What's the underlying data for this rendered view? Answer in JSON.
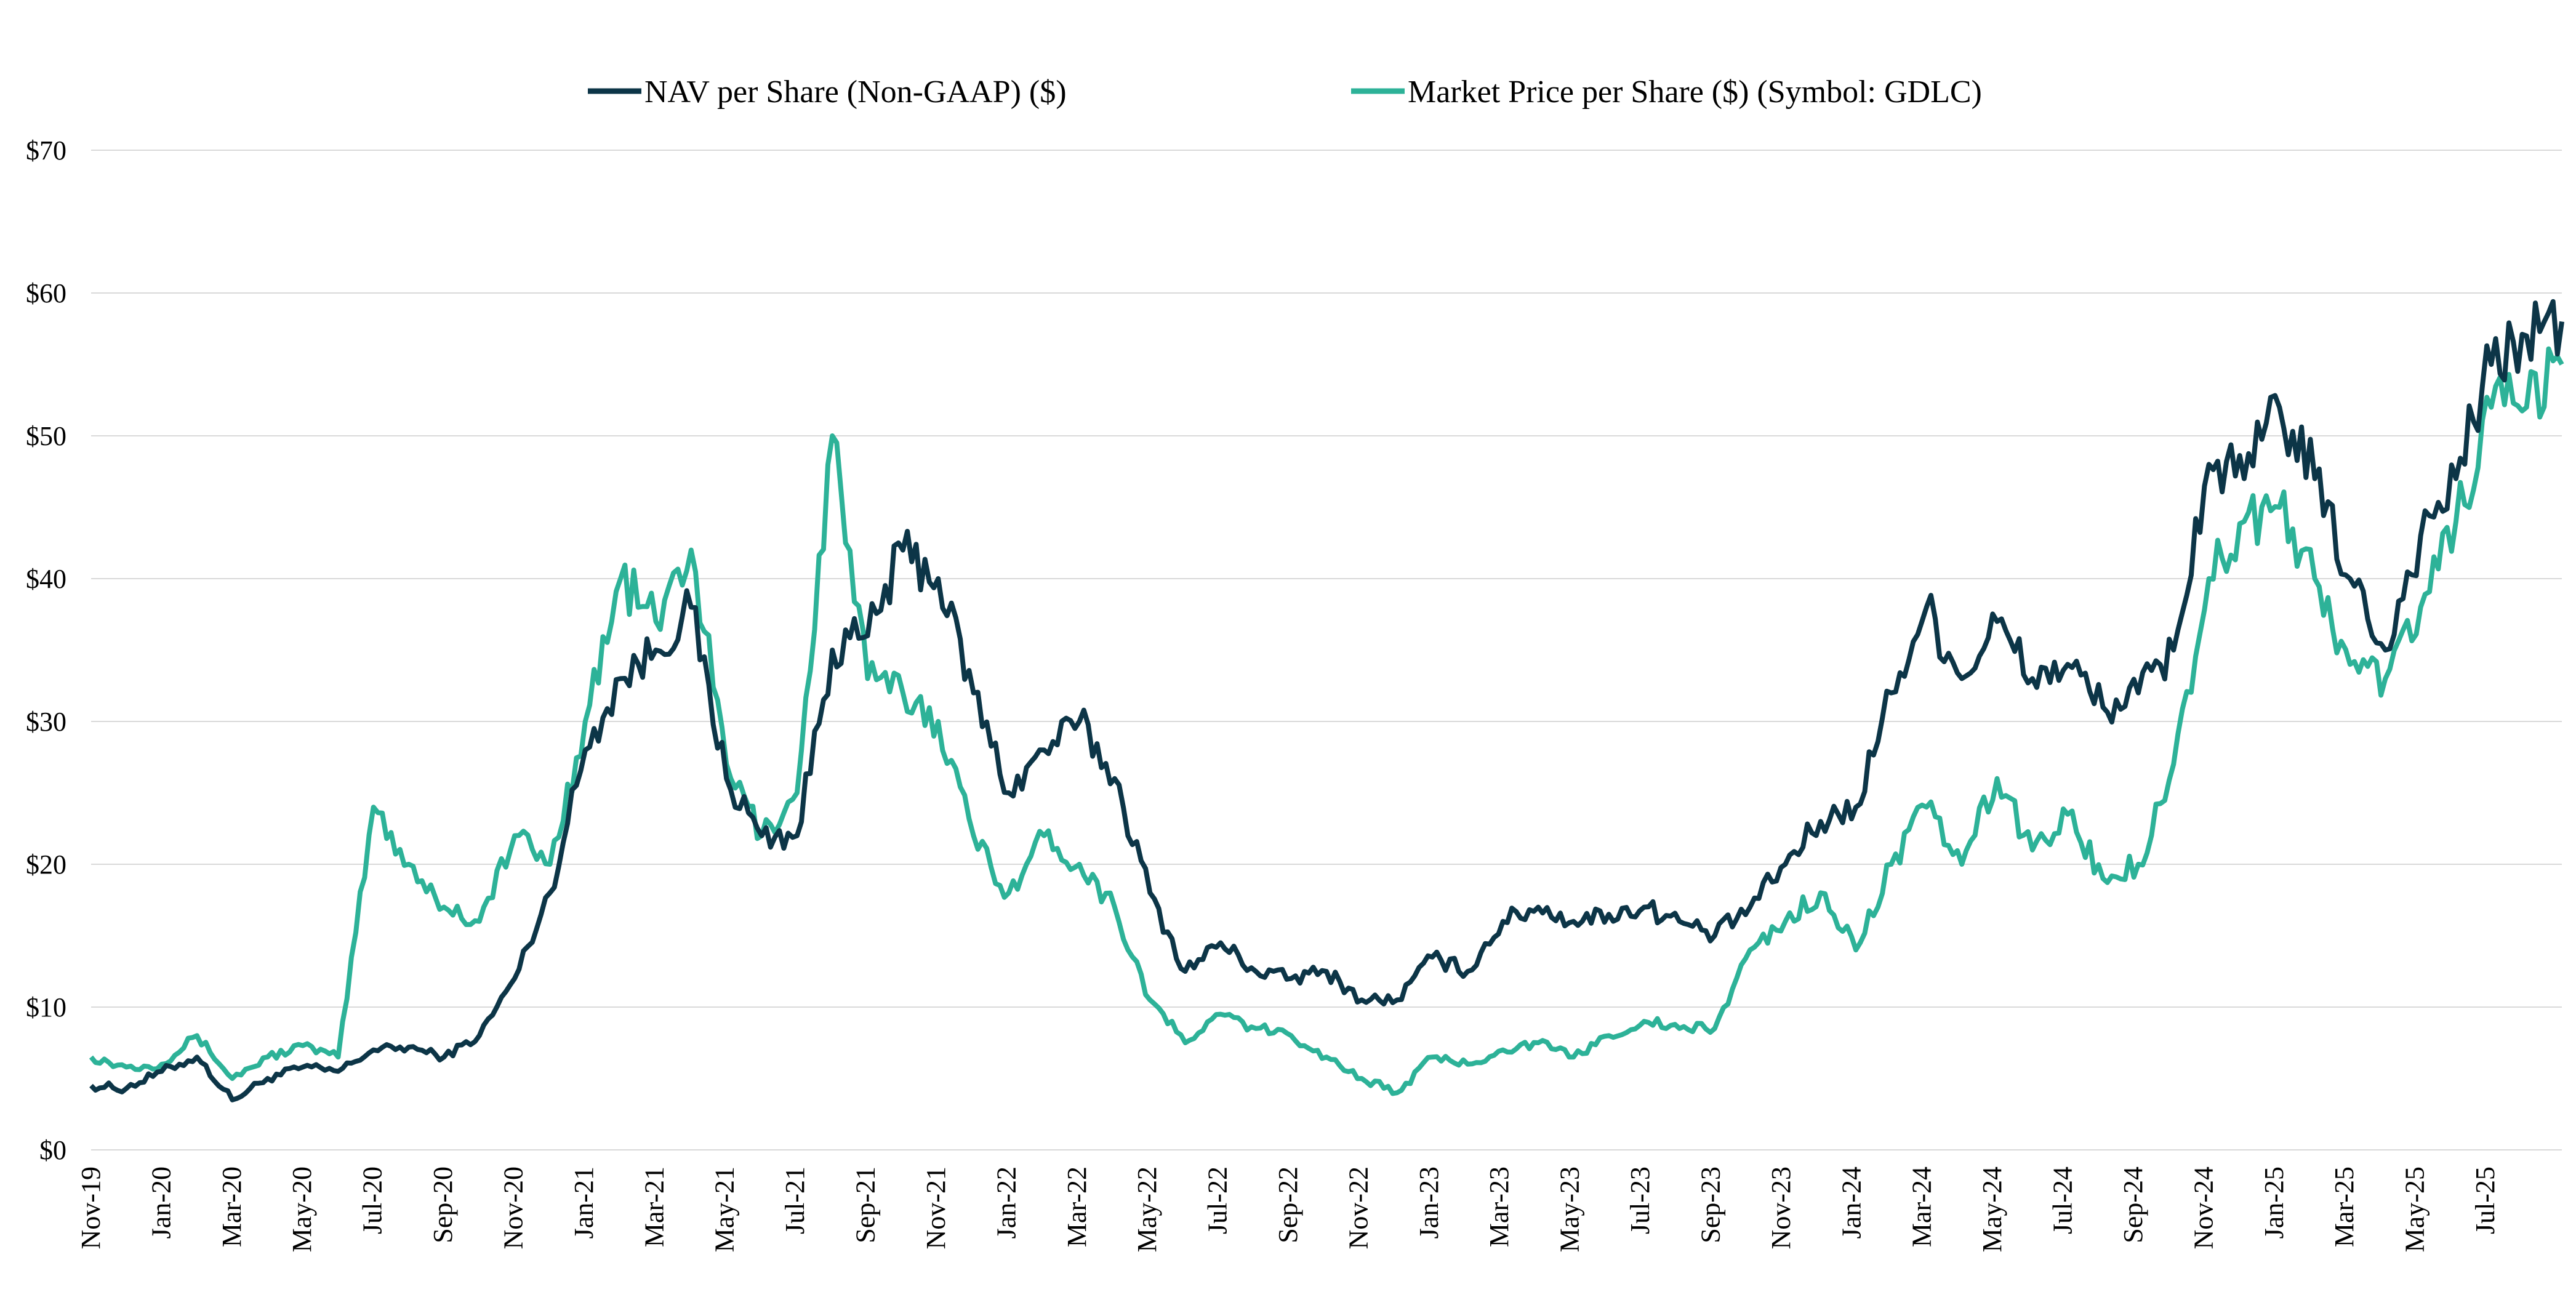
{
  "chart_data": {
    "type": "line",
    "title": "",
    "xlabel": "",
    "ylabel": "",
    "ylim": [
      0,
      70
    ],
    "yticks": [
      0,
      10,
      20,
      30,
      40,
      50,
      60,
      70
    ],
    "ytick_labels": [
      "$0",
      "$10",
      "$20",
      "$30",
      "$40",
      "$50",
      "$60",
      "$70"
    ],
    "xtick_labels": [
      "Nov-19",
      "Jan-20",
      "Mar-20",
      "May-20",
      "Jul-20",
      "Sep-20",
      "Nov-20",
      "Jan-21",
      "Mar-21",
      "May-21",
      "Jul-21",
      "Sep-21",
      "Nov-21",
      "Jan-22",
      "Mar-22",
      "May-22",
      "Jul-22",
      "Sep-22",
      "Nov-22",
      "Jan-23",
      "Mar-23",
      "May-23",
      "Jul-23",
      "Sep-23",
      "Nov-23",
      "Jan-24",
      "Mar-24",
      "May-24",
      "Jul-24",
      "Sep-24",
      "Nov-24",
      "Jan-25",
      "Mar-25",
      "May-25",
      "Jul-25"
    ],
    "x_range": [
      "Nov-19",
      "Sep-25"
    ],
    "grid": "horizontal",
    "legend_position": "top-center",
    "series": [
      {
        "name": "NAV per Share (Non-GAAP) ($)",
        "color": "#0c3547",
        "x": [
          "Nov-19",
          "Dec-19",
          "Jan-20",
          "Feb-20",
          "Mar-20",
          "Apr-20",
          "May-20",
          "Jun-20",
          "Jul-20",
          "Aug-20",
          "Sep-20",
          "Oct-20",
          "Nov-20",
          "Dec-20",
          "Jan-21",
          "Feb-21",
          "Mar-21",
          "Apr-21",
          "May-21",
          "Jun-21",
          "Jul-21",
          "Aug-21",
          "Sep-21",
          "Oct-21",
          "Nov-21",
          "Dec-21",
          "Jan-22",
          "Feb-22",
          "Mar-22",
          "Apr-22",
          "May-22",
          "Jun-22",
          "Jul-22",
          "Aug-22",
          "Sep-22",
          "Oct-22",
          "Nov-22",
          "Dec-22",
          "Jan-23",
          "Feb-23",
          "Mar-23",
          "Apr-23",
          "May-23",
          "Jun-23",
          "Jul-23",
          "Aug-23",
          "Sep-23",
          "Oct-23",
          "Nov-23",
          "Dec-23",
          "Jan-24",
          "Feb-24",
          "Mar-24",
          "Apr-24",
          "May-24",
          "Jun-24",
          "Jul-24",
          "Aug-24",
          "Sep-24",
          "Oct-24",
          "Nov-24",
          "Dec-24",
          "Jan-25",
          "Feb-25",
          "Mar-25",
          "Apr-25",
          "May-25",
          "Jun-25",
          "Jul-25",
          "Aug-25",
          "Sep-25"
        ],
        "values": [
          4.5,
          4.3,
          5.5,
          6.5,
          3.5,
          5.0,
          5.8,
          5.5,
          7.0,
          7.2,
          6.5,
          8.0,
          12.0,
          18.0,
          28.0,
          33.0,
          35.0,
          38.0,
          26.0,
          22.0,
          22.0,
          35.0,
          36.0,
          42.0,
          40.0,
          32.0,
          25.0,
          28.0,
          30.0,
          26.0,
          18.0,
          12.5,
          14.5,
          12.5,
          12.0,
          12.5,
          10.5,
          10.5,
          13.5,
          12.5,
          16.0,
          17.0,
          16.0,
          16.5,
          17.0,
          16.0,
          15.0,
          17.0,
          20.0,
          23.0,
          24.0,
          32.0,
          38.0,
          33.0,
          37.0,
          33.0,
          34.0,
          31.0,
          32.0,
          35.0,
          48.0,
          47.0,
          52.0,
          47.0,
          40.0,
          35.0,
          43.0,
          47.0,
          55.0,
          57.0,
          58.0
        ]
      },
      {
        "name": "Market Price per Share ($) (Symbol: GDLC)",
        "color": "#2db298",
        "x": [
          "Nov-19",
          "Dec-19",
          "Jan-20",
          "Feb-20",
          "Mar-20",
          "Apr-20",
          "May-20",
          "Jun-20",
          "Jul-20",
          "Aug-20",
          "Sep-20",
          "Oct-20",
          "Nov-20",
          "Dec-20",
          "Jan-21",
          "Feb-21",
          "Mar-21",
          "Apr-21",
          "May-21",
          "Jun-21",
          "Jul-21",
          "Aug-21",
          "Sep-21",
          "Oct-21",
          "Nov-21",
          "Dec-21",
          "Jan-22",
          "Feb-22",
          "Mar-22",
          "Apr-22",
          "May-22",
          "Jun-22",
          "Jul-22",
          "Aug-22",
          "Sep-22",
          "Oct-22",
          "Nov-22",
          "Dec-22",
          "Jan-23",
          "Feb-23",
          "Mar-23",
          "Apr-23",
          "May-23",
          "Jun-23",
          "Jul-23",
          "Aug-23",
          "Sep-23",
          "Oct-23",
          "Nov-23",
          "Dec-23",
          "Jan-24",
          "Feb-24",
          "Mar-24",
          "Apr-24",
          "May-24",
          "Jun-24",
          "Jul-24",
          "Aug-24",
          "Sep-24",
          "Oct-24",
          "Nov-24",
          "Dec-24",
          "Jan-25",
          "Feb-25",
          "Mar-25",
          "Apr-25",
          "May-25",
          "Jun-25",
          "Jul-25",
          "Aug-25",
          "Sep-25"
        ],
        "values": [
          6.5,
          5.8,
          6.0,
          8.0,
          5.0,
          6.5,
          7.3,
          6.5,
          24.0,
          20.0,
          17.0,
          16.0,
          22.0,
          20.0,
          30.0,
          40.0,
          37.0,
          42.0,
          27.0,
          22.0,
          25.0,
          50.0,
          33.0,
          32.0,
          30.0,
          22.0,
          18.0,
          22.0,
          20.0,
          17.0,
          10.5,
          7.5,
          9.5,
          8.5,
          8.0,
          6.5,
          5.0,
          4.0,
          6.5,
          6.0,
          7.0,
          7.5,
          6.5,
          8.0,
          9.0,
          8.5,
          8.5,
          14.0,
          16.0,
          18.0,
          14.0,
          20.0,
          24.0,
          20.0,
          26.0,
          21.0,
          23.5,
          19.0,
          20.0,
          27.0,
          40.0,
          44.0,
          45.0,
          40.0,
          34.0,
          33.0,
          38.0,
          44.0,
          52.0,
          52.0,
          55.0
        ]
      }
    ]
  }
}
